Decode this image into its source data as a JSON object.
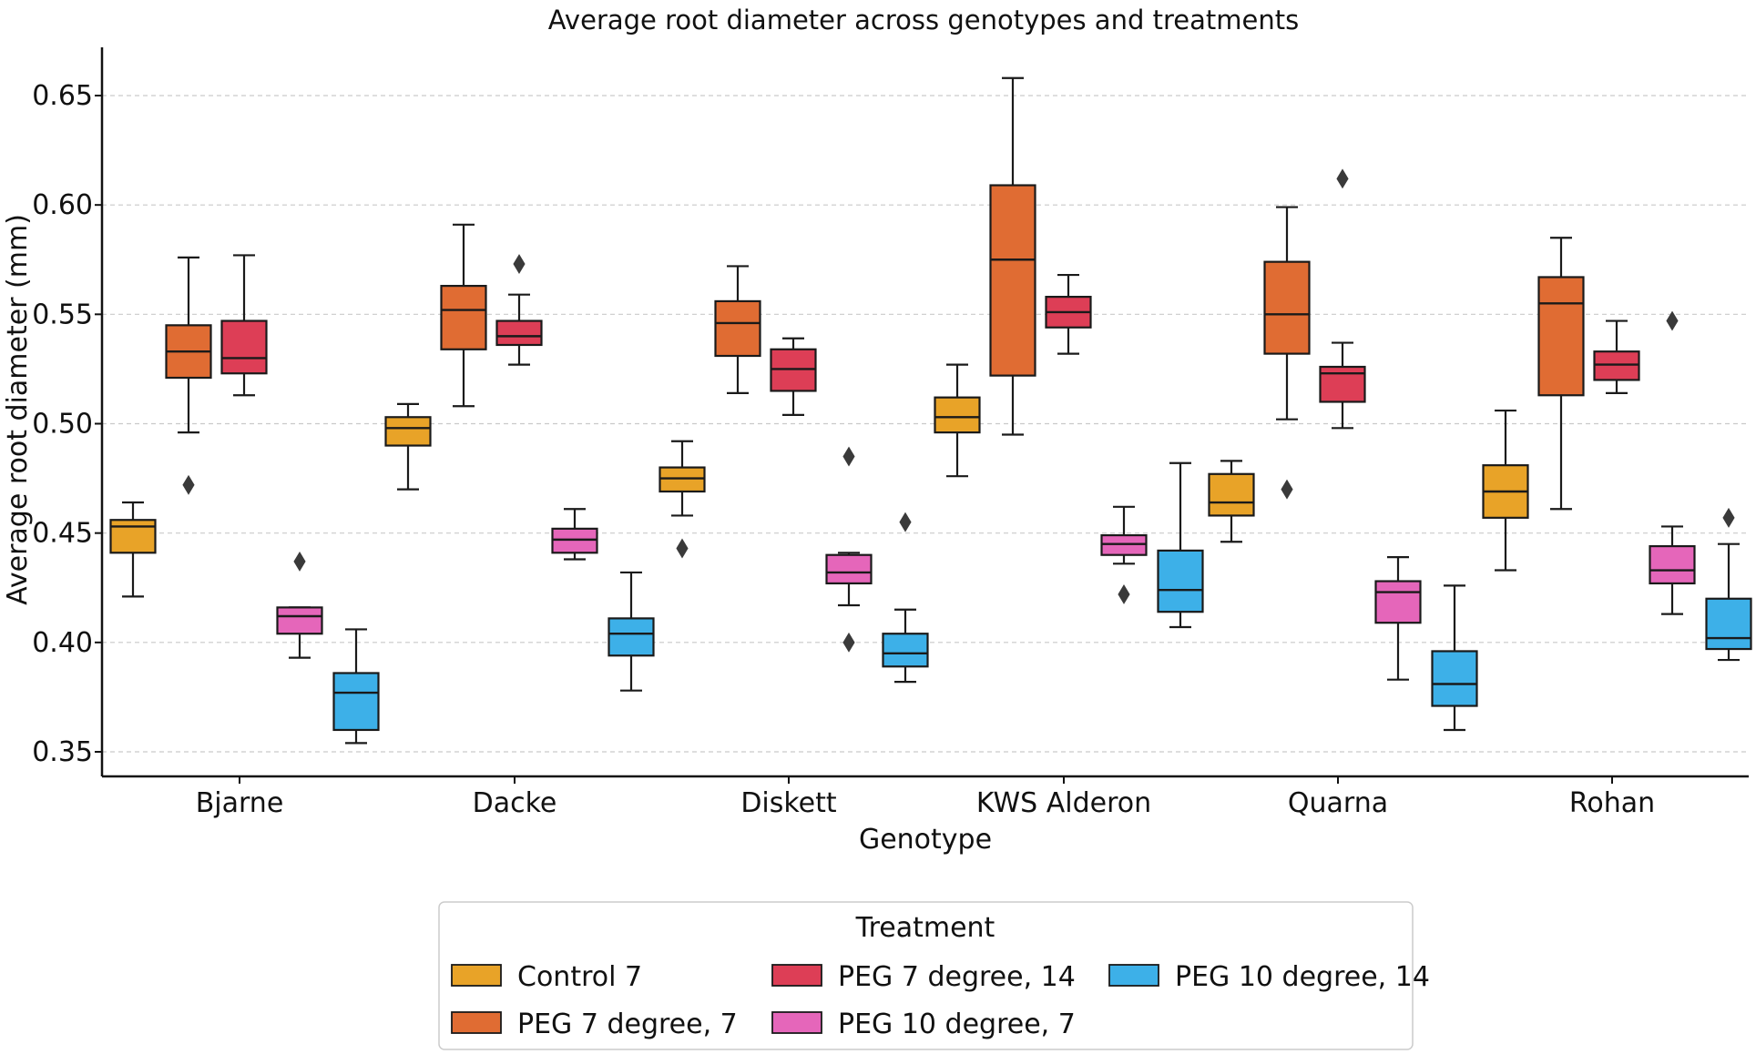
{
  "chart_data": {
    "type": "box",
    "title": "Average root diameter across genotypes and treatments",
    "xlabel": "Genotype",
    "ylabel": "Average root diameter (mm)",
    "ylim": [
      0.34,
      0.675
    ],
    "yticks": [
      "0.35",
      "0.40",
      "0.45",
      "0.50",
      "0.55",
      "0.60",
      "0.65"
    ],
    "grid": "horizontal dashed",
    "legend_title": "Treatment",
    "legend_position": "bottom-center",
    "categories": [
      "Bjarne",
      "Dacke",
      "Diskett",
      "KWS Alderon",
      "Quarna",
      "Rohan"
    ],
    "series": [
      {
        "name": "Control 7",
        "color": "#E8A328",
        "boxes": [
          {
            "min": 0.421,
            "q1": 0.441,
            "median": 0.453,
            "q3": 0.456,
            "max": 0.464,
            "outliers": []
          },
          {
            "min": 0.47,
            "q1": 0.49,
            "median": 0.498,
            "q3": 0.503,
            "max": 0.509,
            "outliers": []
          },
          {
            "min": 0.458,
            "q1": 0.469,
            "median": 0.475,
            "q3": 0.48,
            "max": 0.492,
            "outliers": [
              0.443
            ]
          },
          {
            "min": 0.476,
            "q1": 0.496,
            "median": 0.503,
            "q3": 0.512,
            "max": 0.527,
            "outliers": []
          },
          {
            "min": 0.446,
            "q1": 0.458,
            "median": 0.464,
            "q3": 0.477,
            "max": 0.483,
            "outliers": []
          },
          {
            "min": 0.433,
            "q1": 0.457,
            "median": 0.469,
            "q3": 0.481,
            "max": 0.506,
            "outliers": []
          }
        ]
      },
      {
        "name": "PEG 7 degree, 7",
        "color": "#E06C33",
        "boxes": [
          {
            "min": 0.496,
            "q1": 0.521,
            "median": 0.533,
            "q3": 0.545,
            "max": 0.576,
            "outliers": [
              0.472
            ]
          },
          {
            "min": 0.508,
            "q1": 0.534,
            "median": 0.552,
            "q3": 0.563,
            "max": 0.591,
            "outliers": []
          },
          {
            "min": 0.514,
            "q1": 0.531,
            "median": 0.546,
            "q3": 0.556,
            "max": 0.572,
            "outliers": []
          },
          {
            "min": 0.495,
            "q1": 0.522,
            "median": 0.575,
            "q3": 0.609,
            "max": 0.658,
            "outliers": []
          },
          {
            "min": 0.502,
            "q1": 0.532,
            "median": 0.55,
            "q3": 0.574,
            "max": 0.599,
            "outliers": [
              0.47
            ]
          },
          {
            "min": 0.461,
            "q1": 0.513,
            "median": 0.555,
            "q3": 0.567,
            "max": 0.585,
            "outliers": []
          }
        ]
      },
      {
        "name": "PEG 7 degree, 14",
        "color": "#DD3E56",
        "boxes": [
          {
            "min": 0.513,
            "q1": 0.523,
            "median": 0.53,
            "q3": 0.547,
            "max": 0.577,
            "outliers": []
          },
          {
            "min": 0.527,
            "q1": 0.536,
            "median": 0.54,
            "q3": 0.547,
            "max": 0.559,
            "outliers": [
              0.573
            ]
          },
          {
            "min": 0.504,
            "q1": 0.515,
            "median": 0.525,
            "q3": 0.534,
            "max": 0.539,
            "outliers": []
          },
          {
            "min": 0.532,
            "q1": 0.544,
            "median": 0.551,
            "q3": 0.558,
            "max": 0.568,
            "outliers": []
          },
          {
            "min": 0.498,
            "q1": 0.51,
            "median": 0.523,
            "q3": 0.526,
            "max": 0.537,
            "outliers": [
              0.612
            ]
          },
          {
            "min": 0.514,
            "q1": 0.52,
            "median": 0.527,
            "q3": 0.533,
            "max": 0.547,
            "outliers": []
          }
        ]
      },
      {
        "name": "PEG 10 degree, 7",
        "color": "#E566BA",
        "boxes": [
          {
            "min": 0.393,
            "q1": 0.404,
            "median": 0.412,
            "q3": 0.416,
            "max": 0.416,
            "outliers": [
              0.437
            ]
          },
          {
            "min": 0.438,
            "q1": 0.441,
            "median": 0.447,
            "q3": 0.452,
            "max": 0.461,
            "outliers": []
          },
          {
            "min": 0.417,
            "q1": 0.427,
            "median": 0.432,
            "q3": 0.44,
            "max": 0.441,
            "outliers": [
              0.485,
              0.4
            ]
          },
          {
            "min": 0.436,
            "q1": 0.44,
            "median": 0.445,
            "q3": 0.449,
            "max": 0.462,
            "outliers": [
              0.422
            ]
          },
          {
            "min": 0.383,
            "q1": 0.409,
            "median": 0.423,
            "q3": 0.428,
            "max": 0.439,
            "outliers": []
          },
          {
            "min": 0.413,
            "q1": 0.427,
            "median": 0.433,
            "q3": 0.444,
            "max": 0.453,
            "outliers": [
              0.547
            ]
          }
        ]
      },
      {
        "name": "PEG 10 degree, 14",
        "color": "#3DB0E8",
        "boxes": [
          {
            "min": 0.354,
            "q1": 0.36,
            "median": 0.377,
            "q3": 0.386,
            "max": 0.406,
            "outliers": []
          },
          {
            "min": 0.378,
            "q1": 0.394,
            "median": 0.404,
            "q3": 0.411,
            "max": 0.432,
            "outliers": []
          },
          {
            "min": 0.382,
            "q1": 0.389,
            "median": 0.395,
            "q3": 0.404,
            "max": 0.415,
            "outliers": [
              0.455
            ]
          },
          {
            "min": 0.407,
            "q1": 0.414,
            "median": 0.424,
            "q3": 0.442,
            "max": 0.482,
            "outliers": []
          },
          {
            "min": 0.36,
            "q1": 0.371,
            "median": 0.381,
            "q3": 0.396,
            "max": 0.426,
            "outliers": []
          },
          {
            "min": 0.392,
            "q1": 0.397,
            "median": 0.402,
            "q3": 0.42,
            "max": 0.445,
            "outliers": [
              0.457
            ]
          }
        ]
      }
    ]
  }
}
